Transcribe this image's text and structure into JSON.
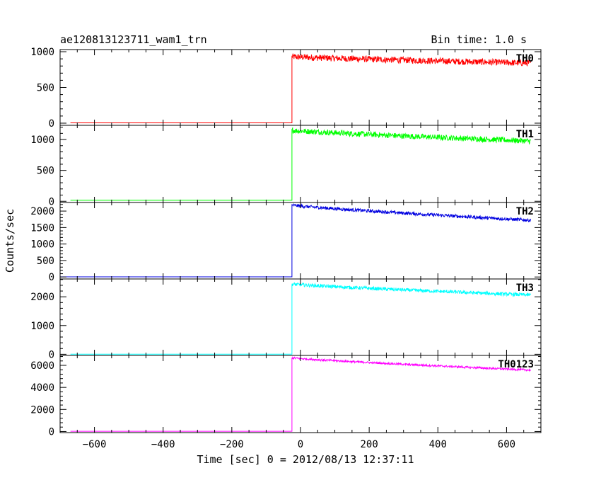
{
  "header": {
    "left_title": "ae120813123711_wam1_trn",
    "right_title": "Bin time: 1.0 s"
  },
  "axes": {
    "xlabel": "Time [sec] 0 = 2012/08/13 12:37:11",
    "ylabel": "Counts/sec"
  },
  "colors": {
    "TH0": "#ff0000",
    "TH1": "#00ff00",
    "TH2": "#0000e0",
    "TH3": "#00ffff",
    "TH0123": "#ff00ff"
  },
  "chart_data": {
    "type": "line",
    "xlim": [
      -700,
      700
    ],
    "x_ticks": [
      -600,
      -400,
      -200,
      0,
      200,
      400,
      600
    ],
    "x_tick_labels": [
      "−600",
      "−400",
      "−200",
      "0",
      "200",
      "400",
      "600"
    ],
    "grid": false,
    "panels": [
      {
        "name": "TH0",
        "ylim": [
          -30,
          1030
        ],
        "y_ticks": [
          0,
          500,
          1000
        ],
        "x_range": [
          -670,
          670
        ],
        "onset_x": -25,
        "baseline": 5,
        "level_start": 930,
        "level_end": 840,
        "noise": 45,
        "points": [
          [
            -670,
            5
          ],
          [
            -26,
            5
          ],
          [
            -25,
            930
          ],
          [
            0,
            920
          ],
          [
            100,
            900
          ],
          [
            200,
            880
          ],
          [
            300,
            870
          ],
          [
            400,
            860
          ],
          [
            500,
            850
          ],
          [
            600,
            845
          ],
          [
            670,
            840
          ]
        ]
      },
      {
        "name": "TH1",
        "ylim": [
          -20,
          1230
        ],
        "y_ticks": [
          0,
          500,
          1000
        ],
        "x_range": [
          -670,
          670
        ],
        "onset_x": -25,
        "baseline": 15,
        "level_start": 1150,
        "level_end": 975,
        "noise": 45,
        "points": [
          [
            -670,
            15
          ],
          [
            -26,
            15
          ],
          [
            -25,
            1150
          ],
          [
            0,
            1140
          ],
          [
            100,
            1110
          ],
          [
            200,
            1080
          ],
          [
            300,
            1050
          ],
          [
            400,
            1030
          ],
          [
            500,
            1010
          ],
          [
            600,
            990
          ],
          [
            670,
            975
          ]
        ]
      },
      {
        "name": "TH2",
        "ylim": [
          -60,
          2260
        ],
        "y_ticks": [
          0,
          500,
          1000,
          1500,
          2000
        ],
        "x_range": [
          -700,
          670
        ],
        "onset_x": -25,
        "baseline": 5,
        "level_start": 2180,
        "level_end": 1720,
        "noise": 50,
        "points": [
          [
            -700,
            5
          ],
          [
            -26,
            5
          ],
          [
            -25,
            2180
          ],
          [
            0,
            2170
          ],
          [
            100,
            2070
          ],
          [
            200,
            1990
          ],
          [
            300,
            1920
          ],
          [
            400,
            1860
          ],
          [
            500,
            1800
          ],
          [
            600,
            1750
          ],
          [
            670,
            1720
          ]
        ]
      },
      {
        "name": "TH3",
        "ylim": [
          -40,
          2620
        ],
        "y_ticks": [
          0,
          1000,
          2000
        ],
        "x_range": [
          -670,
          670
        ],
        "onset_x": -25,
        "baseline": 5,
        "level_start": 2440,
        "level_end": 2060,
        "noise": 60,
        "points": [
          [
            -670,
            5
          ],
          [
            -26,
            5
          ],
          [
            -25,
            2440
          ],
          [
            0,
            2420
          ],
          [
            100,
            2350
          ],
          [
            200,
            2280
          ],
          [
            300,
            2220
          ],
          [
            400,
            2170
          ],
          [
            500,
            2120
          ],
          [
            600,
            2080
          ],
          [
            670,
            2060
          ]
        ]
      },
      {
        "name": "TH0123",
        "ylim": [
          -100,
          6900
        ],
        "y_ticks": [
          0,
          2000,
          4000,
          6000
        ],
        "x_range": [
          -670,
          670
        ],
        "onset_x": -25,
        "baseline": 20,
        "level_start": 6680,
        "level_end": 5570,
        "noise": 90,
        "points": [
          [
            -670,
            20
          ],
          [
            -26,
            20
          ],
          [
            -25,
            6680
          ],
          [
            0,
            6640
          ],
          [
            100,
            6420
          ],
          [
            200,
            6240
          ],
          [
            300,
            6080
          ],
          [
            400,
            5930
          ],
          [
            500,
            5790
          ],
          [
            600,
            5660
          ],
          [
            670,
            5570
          ]
        ]
      }
    ]
  }
}
